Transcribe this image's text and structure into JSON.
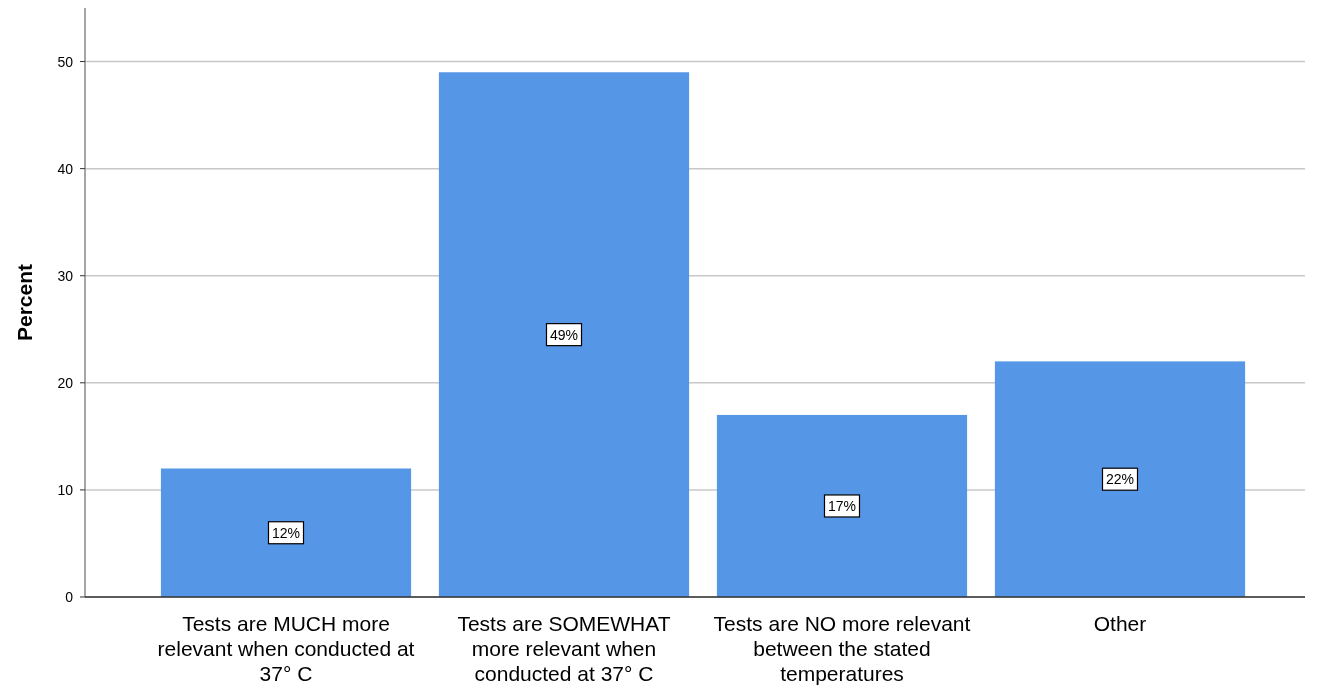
{
  "chart_data": {
    "type": "bar",
    "ylabel": "Percent",
    "categories": [
      "Tests are MUCH more relevant when conducted at 37° C",
      "Tests are SOMEWHAT more relevant when conducted at 37° C",
      "Tests are NO more relevant between the stated temperatures",
      "Other"
    ],
    "values": [
      12,
      49,
      17,
      22
    ],
    "color": "#5596e6",
    "value_labels": [
      "12%",
      "49%",
      "17%",
      "22%"
    ],
    "ylim": [
      0,
      55
    ],
    "yticks": [
      0,
      10,
      20,
      30,
      40,
      50
    ],
    "grid": "y"
  }
}
